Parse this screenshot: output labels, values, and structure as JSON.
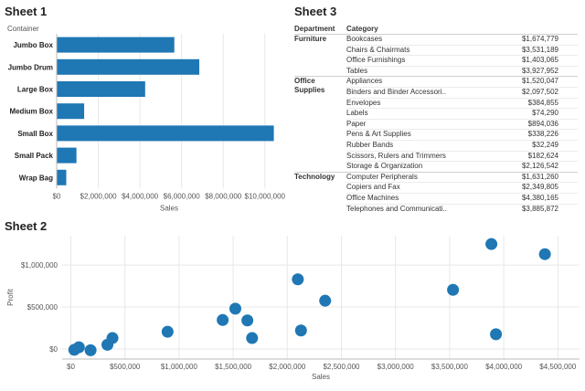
{
  "sheet1": {
    "title": "Sheet 1",
    "row_header": "Container"
  },
  "sheet2": {
    "title": "Sheet 2"
  },
  "sheet3": {
    "title": "Sheet 3",
    "col_department": "Department",
    "col_category": "Category",
    "departments": [
      {
        "name": "Furniture",
        "rows": [
          {
            "category": "Bookcases",
            "value": "$1,674,779"
          },
          {
            "category": "Chairs & Chairmats",
            "value": "$3,531,189"
          },
          {
            "category": "Office Furnishings",
            "value": "$1,403,065"
          },
          {
            "category": "Tables",
            "value": "$3,927,952"
          }
        ]
      },
      {
        "name": "Office Supplies",
        "rows": [
          {
            "category": "Appliances",
            "value": "$1,520,047"
          },
          {
            "category": "Binders and Binder Accessori..",
            "value": "$2,097,502"
          },
          {
            "category": "Envelopes",
            "value": "$384,855"
          },
          {
            "category": "Labels",
            "value": "$74,290"
          },
          {
            "category": "Paper",
            "value": "$894,036"
          },
          {
            "category": "Pens & Art Supplies",
            "value": "$338,226"
          },
          {
            "category": "Rubber Bands",
            "value": "$32,249"
          },
          {
            "category": "Scissors, Rulers and Trimmers",
            "value": "$182,624"
          },
          {
            "category": "Storage & Organization",
            "value": "$2,126,542"
          }
        ]
      },
      {
        "name": "Technology",
        "rows": [
          {
            "category": "Computer Peripherals",
            "value": "$1,631,260"
          },
          {
            "category": "Copiers and Fax",
            "value": "$2,349,805"
          },
          {
            "category": "Office Machines",
            "value": "$4,380,165"
          },
          {
            "category": "Telephones and Communicati..",
            "value": "$3,885,872"
          }
        ]
      }
    ]
  },
  "colors": {
    "mark": "#1f77b4",
    "grid": "#e8e8e8",
    "axis": "#bbbbbb"
  },
  "chart_data": [
    {
      "type": "bar",
      "orientation": "horizontal",
      "title": "",
      "xlabel": "Sales",
      "ylabel": "Container",
      "categories": [
        "Jumbo Box",
        "Jumbo Drum",
        "Large Box",
        "Medium Box",
        "Small Box",
        "Small Pack",
        "Wrap Bag"
      ],
      "values": [
        5650000,
        6850000,
        4250000,
        1320000,
        10430000,
        950000,
        460000
      ],
      "xlim": [
        0,
        10800000
      ],
      "xticks": [
        0,
        2000000,
        4000000,
        6000000,
        8000000,
        10000000
      ],
      "xtick_labels": [
        "$0",
        "$2,000,000",
        "$4,000,000",
        "$6,000,000",
        "$8,000,000",
        "$10,000,000"
      ],
      "grid": true
    },
    {
      "type": "scatter",
      "title": "",
      "xlabel": "Sales",
      "ylabel": "Profit",
      "xlim": [
        -80000,
        4700000
      ],
      "ylim": [
        -120000,
        1350000
      ],
      "xticks": [
        0,
        500000,
        1000000,
        1500000,
        2000000,
        2500000,
        3000000,
        3500000,
        4000000,
        4500000
      ],
      "xtick_labels": [
        "$0",
        "$500,000",
        "$1,000,000",
        "$1,500,000",
        "$2,000,000",
        "$2,500,000",
        "$3,000,000",
        "$3,500,000",
        "$4,000,000",
        "$4,500,000"
      ],
      "yticks": [
        0,
        500000,
        1000000
      ],
      "ytick_labels": [
        "$0",
        "$500,000",
        "$1,000,000"
      ],
      "grid": true,
      "points": [
        {
          "x": 32249,
          "y": -10000
        },
        {
          "x": 74290,
          "y": 20000
        },
        {
          "x": 182624,
          "y": -15000
        },
        {
          "x": 338226,
          "y": 50000
        },
        {
          "x": 384855,
          "y": 130000
        },
        {
          "x": 894036,
          "y": 205000
        },
        {
          "x": 1403065,
          "y": 345000
        },
        {
          "x": 1520047,
          "y": 480000
        },
        {
          "x": 1631260,
          "y": 340000
        },
        {
          "x": 1674779,
          "y": 130000
        },
        {
          "x": 2097502,
          "y": 830000
        },
        {
          "x": 2126542,
          "y": 220000
        },
        {
          "x": 2349805,
          "y": 575000
        },
        {
          "x": 3531189,
          "y": 705000
        },
        {
          "x": 3885872,
          "y": 1250000
        },
        {
          "x": 3927952,
          "y": 175000
        },
        {
          "x": 4380165,
          "y": 1130000
        }
      ]
    }
  ]
}
